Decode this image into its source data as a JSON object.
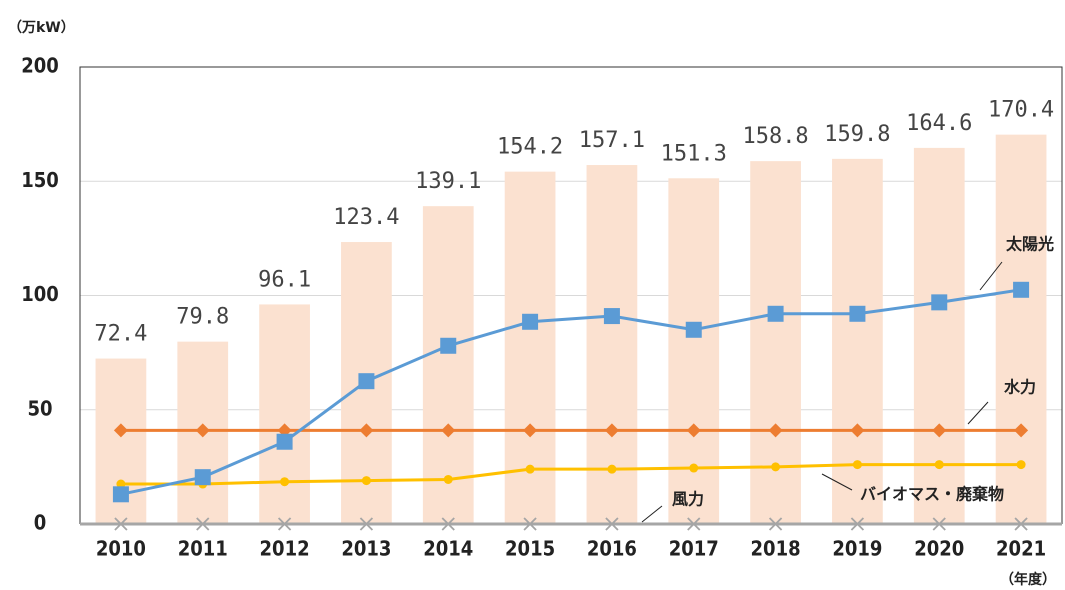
{
  "chart_data": {
    "type": "combo",
    "y_unit": "（万kW）",
    "x_unit": "（年度）",
    "categories": [
      "2010",
      "2011",
      "2012",
      "2013",
      "2014",
      "2015",
      "2016",
      "2017",
      "2018",
      "2019",
      "2020",
      "2021"
    ],
    "values": [
      72.4,
      79.8,
      96.1,
      123.4,
      139.1,
      154.2,
      157.1,
      151.3,
      158.8,
      159.8,
      164.6,
      170.4
    ],
    "color": "#fbe1d0",
    "ylim": [
      0,
      200
    ],
    "yticks": [
      0,
      50,
      100,
      150,
      200
    ],
    "grid": true,
    "series": [
      {
        "name": "太陽光",
        "color": "#5b9bd5",
        "marker": "square",
        "values": [
          13,
          20.5,
          36,
          62.5,
          78,
          88.5,
          91,
          85,
          92,
          92,
          97,
          102.5
        ]
      },
      {
        "name": "水力",
        "color": "#ed7d31",
        "marker": "diamond",
        "values": [
          41,
          41,
          41,
          41,
          41,
          41,
          41,
          41,
          41,
          41,
          41,
          41
        ]
      },
      {
        "name": "バイオマス・廃棄物",
        "color": "#ffc000",
        "marker": "circle",
        "values": [
          17.5,
          17.5,
          18.5,
          19,
          19.5,
          24,
          24,
          24.5,
          25,
          26,
          26,
          26
        ]
      },
      {
        "name": "風力",
        "color": "#a5a5a5",
        "marker": "x",
        "values": [
          0,
          0,
          0,
          0,
          0,
          0,
          0,
          0,
          0,
          0,
          0,
          0
        ]
      }
    ]
  }
}
